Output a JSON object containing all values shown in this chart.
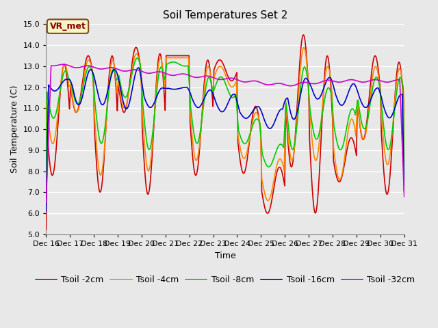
{
  "title": "Soil Temperatures Set 2",
  "xlabel": "Time",
  "ylabel": "Soil Temperature (C)",
  "ylim": [
    5.0,
    15.0
  ],
  "yticks": [
    5.0,
    6.0,
    7.0,
    8.0,
    9.0,
    10.0,
    11.0,
    12.0,
    13.0,
    14.0,
    15.0
  ],
  "xtick_labels": [
    "Dec 16",
    "Dec 17",
    "Dec 18",
    "Dec 19",
    "Dec 20",
    "Dec 21",
    "Dec 22",
    "Dec 23",
    "Dec 24",
    "Dec 25",
    "Dec 26",
    "Dec 27",
    "Dec 28",
    "Dec 29",
    "Dec 30",
    "Dec 31"
  ],
  "bg_color": "#e8e8e8",
  "plot_bg": "#e8e8e8",
  "grid_color": "#ffffff",
  "vr_met_label": "VR_met",
  "legend_labels": [
    "Tsoil -2cm",
    "Tsoil -4cm",
    "Tsoil -8cm",
    "Tsoil -16cm",
    "Tsoil -32cm"
  ],
  "line_colors": [
    "#cc0000",
    "#ff8800",
    "#00cc00",
    "#0000cc",
    "#cc00cc"
  ],
  "line_width": 1.2,
  "title_fontsize": 11,
  "label_fontsize": 9,
  "tick_fontsize": 8,
  "legend_fontsize": 9
}
